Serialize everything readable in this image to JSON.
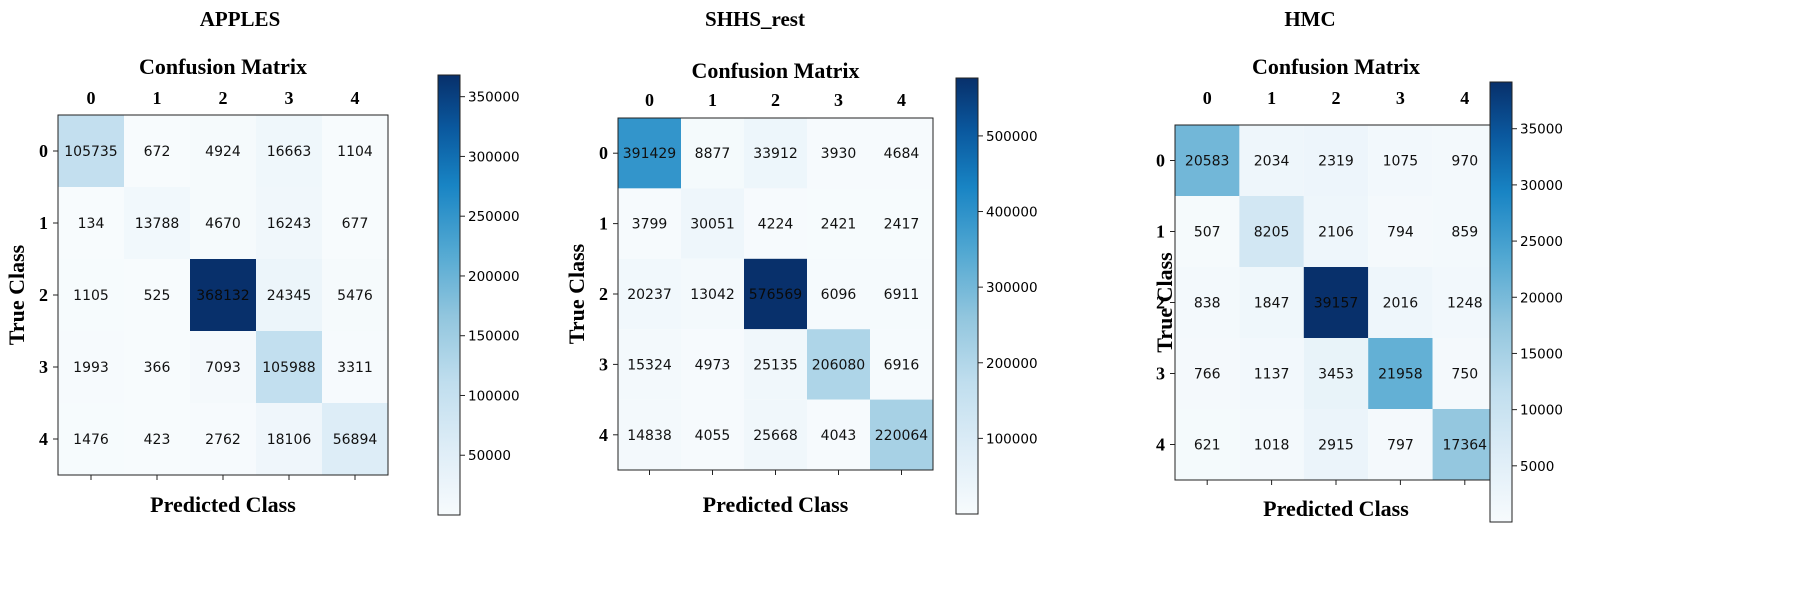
{
  "chart_data": [
    {
      "type": "heatmap",
      "figure_title": "APPLES",
      "title": "Confusion Matrix",
      "xlabel": "Predicted Class",
      "ylabel": "True Class",
      "x_ticks": [
        "0",
        "1",
        "2",
        "3",
        "4"
      ],
      "y_ticks": [
        "0",
        "1",
        "2",
        "3",
        "4"
      ],
      "matrix": [
        [
          105735,
          672,
          4924,
          16663,
          1104
        ],
        [
          134,
          13788,
          4670,
          16243,
          677
        ],
        [
          1105,
          525,
          368132,
          24345,
          5476
        ],
        [
          1993,
          366,
          7093,
          105988,
          3311
        ],
        [
          1476,
          423,
          2762,
          18106,
          56894
        ]
      ],
      "colorbar": {
        "min": 0,
        "max": 368132,
        "ticks": [
          50000,
          100000,
          150000,
          200000,
          250000,
          300000,
          350000
        ],
        "tick_labels": [
          "50000",
          "100000",
          "150000",
          "200000",
          "250000",
          "300000",
          "350000"
        ]
      },
      "colormap": [
        "#f7fbfd",
        "#0b2f6b"
      ]
    },
    {
      "type": "heatmap",
      "figure_title": "SHHS_rest",
      "title": "Confusion Matrix",
      "xlabel": "Predicted Class",
      "ylabel": "True Class",
      "x_ticks": [
        "0",
        "1",
        "2",
        "3",
        "4"
      ],
      "y_ticks": [
        "0",
        "1",
        "2",
        "3",
        "4"
      ],
      "matrix": [
        [
          391429,
          8877,
          33912,
          3930,
          4684
        ],
        [
          3799,
          30051,
          4224,
          2421,
          2417
        ],
        [
          20237,
          13042,
          576569,
          6096,
          6911
        ],
        [
          15324,
          4973,
          25135,
          206080,
          6916
        ],
        [
          14838,
          4055,
          25668,
          4043,
          220064
        ]
      ],
      "colorbar": {
        "min": 0,
        "max": 576569,
        "ticks": [
          100000,
          200000,
          300000,
          400000,
          500000
        ],
        "tick_labels": [
          "100000",
          "200000",
          "300000",
          "400000",
          "500000"
        ]
      },
      "colormap": [
        "#f7fbfd",
        "#0b2f6b"
      ]
    },
    {
      "type": "heatmap",
      "figure_title": "HMC",
      "title": "Confusion Matrix",
      "xlabel": "Predicted Class",
      "ylabel": "True Class",
      "x_ticks": [
        "0",
        "1",
        "2",
        "3",
        "4"
      ],
      "y_ticks": [
        "0",
        "1",
        "2",
        "3",
        "4"
      ],
      "matrix": [
        [
          20583,
          2034,
          2319,
          1075,
          970
        ],
        [
          507,
          8205,
          2106,
          794,
          859
        ],
        [
          838,
          1847,
          39157,
          2016,
          1248
        ],
        [
          766,
          1137,
          3453,
          21958,
          750
        ],
        [
          621,
          1018,
          2915,
          797,
          17364
        ]
      ],
      "colorbar": {
        "min": 0,
        "max": 39157,
        "ticks": [
          5000,
          10000,
          15000,
          20000,
          25000,
          30000,
          35000
        ],
        "tick_labels": [
          "5000",
          "10000",
          "15000",
          "20000",
          "25000",
          "30000",
          "35000"
        ]
      },
      "colormap": [
        "#f7fbfd",
        "#0b2f6b"
      ]
    }
  ]
}
